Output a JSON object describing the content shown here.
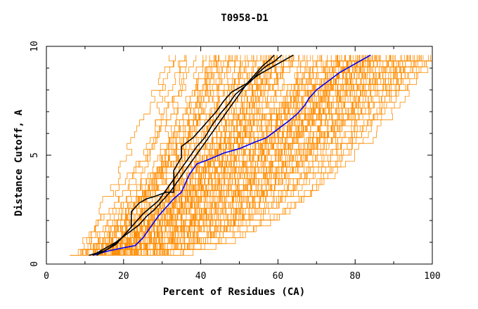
{
  "chart_data": {
    "type": "line",
    "title": "T0958-D1",
    "xlabel": "Percent of Residues (CA)",
    "ylabel": "Distance Cutoff, A",
    "xlim": [
      0,
      100
    ],
    "ylim": [
      0,
      10
    ],
    "xticks": [
      "0",
      "20",
      "40",
      "60",
      "80",
      "100"
    ],
    "yticks": [
      "0",
      "5",
      "10"
    ],
    "grid": false,
    "legend": "none",
    "colors": {
      "background_curves": "#ff8c00",
      "highlight_black": "#000000",
      "highlight_blue": "#0000ff"
    },
    "highlighted_series": [
      {
        "color": "#0000ff",
        "points": [
          [
            12,
            0.4
          ],
          [
            16,
            0.6
          ],
          [
            20,
            0.75
          ],
          [
            23,
            0.85
          ],
          [
            25,
            1.2
          ],
          [
            27,
            1.7
          ],
          [
            29,
            2.2
          ],
          [
            31,
            2.6
          ],
          [
            33,
            3.0
          ],
          [
            35,
            3.3
          ],
          [
            36,
            3.7
          ],
          [
            37,
            4.1
          ],
          [
            39,
            4.6
          ],
          [
            42,
            4.8
          ],
          [
            46,
            5.1
          ],
          [
            50,
            5.3
          ],
          [
            54,
            5.6
          ],
          [
            57,
            5.8
          ],
          [
            60,
            6.2
          ],
          [
            63,
            6.6
          ],
          [
            65,
            6.9
          ],
          [
            67,
            7.3
          ],
          [
            68,
            7.6
          ],
          [
            70,
            8.0
          ],
          [
            73,
            8.4
          ],
          [
            76,
            8.8
          ],
          [
            80,
            9.2
          ],
          [
            84,
            9.6
          ]
        ]
      },
      {
        "color": "#000000",
        "points": [
          [
            13,
            0.4
          ],
          [
            16,
            0.7
          ],
          [
            19,
            1.1
          ],
          [
            21,
            1.5
          ],
          [
            23,
            1.9
          ],
          [
            25,
            2.3
          ],
          [
            27,
            2.6
          ],
          [
            29,
            2.9
          ],
          [
            31,
            3.4
          ],
          [
            33,
            3.9
          ],
          [
            35,
            4.4
          ],
          [
            37,
            4.9
          ],
          [
            39,
            5.4
          ],
          [
            41,
            5.8
          ],
          [
            43,
            6.4
          ],
          [
            45,
            6.9
          ],
          [
            47,
            7.3
          ],
          [
            49,
            7.8
          ],
          [
            51,
            8.1
          ],
          [
            53,
            8.4
          ],
          [
            55,
            8.8
          ],
          [
            57,
            9.1
          ],
          [
            59,
            9.3
          ],
          [
            61,
            9.6
          ]
        ]
      },
      {
        "color": "#000000",
        "points": [
          [
            11,
            0.4
          ],
          [
            15,
            0.6
          ],
          [
            18,
            0.9
          ],
          [
            20,
            1.3
          ],
          [
            22,
            1.7
          ],
          [
            22,
            2.4
          ],
          [
            24,
            2.8
          ],
          [
            26,
            3.0
          ],
          [
            28,
            3.1
          ],
          [
            31,
            3.3
          ],
          [
            33,
            3.3
          ],
          [
            33,
            4.3
          ],
          [
            35,
            4.9
          ],
          [
            35,
            5.4
          ],
          [
            38,
            5.8
          ],
          [
            40,
            6.2
          ],
          [
            42,
            6.6
          ],
          [
            44,
            7.0
          ],
          [
            46,
            7.5
          ],
          [
            48,
            7.9
          ],
          [
            52,
            8.3
          ],
          [
            55,
            8.7
          ],
          [
            58,
            9.0
          ],
          [
            61,
            9.3
          ],
          [
            64,
            9.6
          ]
        ]
      },
      {
        "color": "#000000",
        "points": [
          [
            12,
            0.4
          ],
          [
            15,
            0.7
          ],
          [
            18,
            1.0
          ],
          [
            21,
            1.4
          ],
          [
            24,
            1.8
          ],
          [
            26,
            2.2
          ],
          [
            28,
            2.5
          ],
          [
            30,
            2.9
          ],
          [
            32,
            3.3
          ],
          [
            34,
            3.8
          ],
          [
            36,
            4.3
          ],
          [
            38,
            4.8
          ],
          [
            40,
            5.3
          ],
          [
            42,
            5.8
          ],
          [
            44,
            6.3
          ],
          [
            46,
            6.8
          ],
          [
            48,
            7.3
          ],
          [
            50,
            7.8
          ],
          [
            52,
            8.3
          ],
          [
            54,
            8.7
          ],
          [
            56,
            9.1
          ],
          [
            58,
            9.4
          ],
          [
            59,
            9.6
          ]
        ]
      }
    ]
  }
}
